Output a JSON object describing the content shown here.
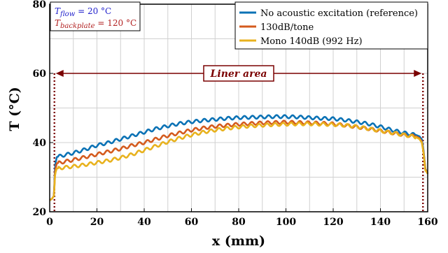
{
  "chart_data": {
    "type": "line",
    "title": "",
    "xlabel": "x (mm)",
    "ylabel": "T (°C)",
    "xlim": [
      0,
      160
    ],
    "ylim": [
      20,
      80
    ],
    "x_ticks": [
      "0",
      "20",
      "40",
      "60",
      "80",
      "100",
      "120",
      "140",
      "160"
    ],
    "y_ticks": [
      "20",
      "40",
      "60",
      "80"
    ],
    "grid": true,
    "legend_position": "top-right",
    "conditions": {
      "flow_symbol": "T",
      "flow_sub": "flow",
      "flow_value": " = 20 °C",
      "flow_color": "#2222cc",
      "backplate_symbol": "T",
      "backplate_sub": "backplate",
      "backplate_value": " = 120 °C",
      "backplate_color": "#b22222"
    },
    "liner_area": {
      "label": "Liner area",
      "x_start": 2,
      "x_end": 158,
      "y": 60,
      "color": "#7a0000"
    },
    "series": [
      {
        "name": "No acoustic excitation (reference)",
        "color": "#0b72b5",
        "x": [
          0,
          1,
          1.8,
          2.3,
          3,
          5,
          10,
          15,
          20,
          25,
          30,
          35,
          40,
          45,
          50,
          55,
          60,
          65,
          70,
          75,
          80,
          85,
          90,
          95,
          100,
          105,
          110,
          115,
          120,
          125,
          130,
          135,
          140,
          145,
          150,
          155,
          156.5,
          157.5,
          158.2,
          159,
          160
        ],
        "y": [
          23.3,
          23.8,
          24.6,
          33.5,
          35.8,
          36.2,
          37.0,
          38.0,
          39.2,
          40.0,
          41.0,
          42.0,
          43.0,
          44.0,
          44.8,
          45.5,
          46.0,
          46.4,
          46.7,
          47.0,
          47.2,
          47.3,
          47.4,
          47.5,
          47.5,
          47.4,
          47.2,
          47.0,
          46.9,
          46.5,
          46.0,
          45.4,
          44.6,
          43.6,
          42.8,
          42.2,
          41.8,
          41.0,
          38.0,
          32.5,
          31.0
        ],
        "ripple": true
      },
      {
        "name": "130dB/tone",
        "color": "#d45b1e",
        "x": [
          0,
          1,
          1.8,
          2.3,
          3,
          5,
          10,
          15,
          20,
          25,
          30,
          35,
          40,
          45,
          50,
          55,
          60,
          65,
          70,
          75,
          80,
          85,
          90,
          95,
          100,
          105,
          110,
          115,
          120,
          125,
          130,
          135,
          140,
          145,
          150,
          155,
          156.5,
          157.5,
          158.2,
          159,
          160
        ],
        "y": [
          23.3,
          23.8,
          24.6,
          32.0,
          34.0,
          34.3,
          35.0,
          35.8,
          36.6,
          37.4,
          38.2,
          39.2,
          40.0,
          41.0,
          42.0,
          42.8,
          43.6,
          44.2,
          44.7,
          45.0,
          45.3,
          45.5,
          45.7,
          45.8,
          45.9,
          45.8,
          45.7,
          45.6,
          45.4,
          45.0,
          44.5,
          44.0,
          43.4,
          42.8,
          42.2,
          41.8,
          41.3,
          40.3,
          37.5,
          32.3,
          31.0
        ],
        "ripple": true
      },
      {
        "name": "Mono 140dB (992 Hz)",
        "color": "#e8b21e",
        "x": [
          0,
          1,
          1.8,
          2.3,
          3,
          5,
          10,
          15,
          20,
          25,
          30,
          35,
          40,
          45,
          50,
          55,
          60,
          65,
          70,
          75,
          80,
          85,
          90,
          95,
          100,
          105,
          110,
          115,
          120,
          125,
          130,
          135,
          140,
          145,
          150,
          155,
          156.5,
          157.5,
          158.2,
          159,
          160
        ],
        "y": [
          23.3,
          23.8,
          24.6,
          31.0,
          32.5,
          32.7,
          33.1,
          33.6,
          34.2,
          34.8,
          35.6,
          36.6,
          37.8,
          39.0,
          40.2,
          41.3,
          42.2,
          43.0,
          43.6,
          44.1,
          44.5,
          44.8,
          45.0,
          45.2,
          45.3,
          45.4,
          45.4,
          45.3,
          45.2,
          45.0,
          44.6,
          44.0,
          43.4,
          42.8,
          42.2,
          41.6,
          41.0,
          40.0,
          37.2,
          32.0,
          31.0
        ],
        "ripple": true
      }
    ]
  }
}
